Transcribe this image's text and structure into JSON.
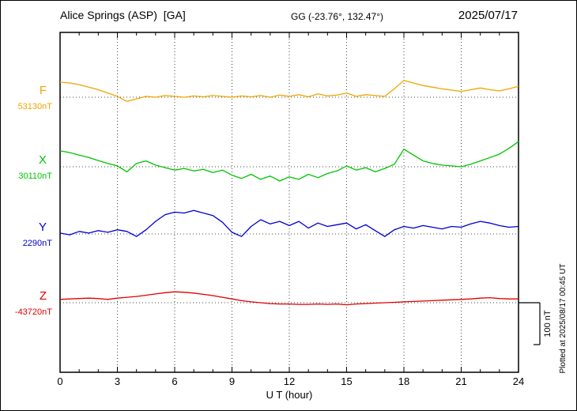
{
  "header": {
    "station": "Alice Springs (ASP)  [GA]",
    "coords": "GG (-23.76°, 132.47°)",
    "date": "2025/07/17"
  },
  "side_note": "Plotted at 2025/08/17 00:45 UT",
  "chart_data": {
    "type": "line",
    "title": "Alice Springs (ASP) [GA] magnetogram 2025/07/17",
    "xlabel": "U T (hour)",
    "xlim": [
      0,
      24
    ],
    "x_ticks": [
      0,
      3,
      6,
      9,
      12,
      15,
      18,
      21,
      24
    ],
    "x_start": 0,
    "x_step": 0.5,
    "grid": "dotted vertical lines at 3h intervals; dotted horizontal line at each channel baseline",
    "legend_position": "left-of-plot channel labels",
    "scale_bar": {
      "label": "100 nT",
      "nT": 100
    },
    "series": [
      {
        "name": "F",
        "baseline_label": "53130nT",
        "baseline_nT": 53130,
        "color": "#f0a500",
        "offsets_nT": [
          36,
          34,
          30,
          24,
          18,
          10,
          2,
          -10,
          -4,
          2,
          0,
          4,
          2,
          0,
          3,
          1,
          4,
          2,
          0,
          3,
          1,
          4,
          0,
          5,
          2,
          6,
          1,
          8,
          3,
          5,
          10,
          2,
          6,
          4,
          2,
          20,
          40,
          34,
          28,
          24,
          20,
          17,
          14,
          18,
          22,
          18,
          15,
          20,
          26
        ]
      },
      {
        "name": "X",
        "baseline_label": "30110nT",
        "baseline_nT": 30110,
        "color": "#00c400",
        "offsets_nT": [
          38,
          34,
          28,
          22,
          15,
          8,
          2,
          -12,
          8,
          14,
          4,
          -2,
          -8,
          -4,
          -10,
          -6,
          -14,
          -8,
          -20,
          -28,
          -18,
          -30,
          -22,
          -34,
          -24,
          -30,
          -18,
          -26,
          -16,
          -10,
          2,
          -8,
          -2,
          -12,
          -4,
          6,
          42,
          28,
          14,
          8,
          4,
          2,
          0,
          6,
          14,
          22,
          30,
          44,
          60
        ]
      },
      {
        "name": "Y",
        "baseline_label": "2290nT",
        "baseline_nT": 2290,
        "color": "#0000d0",
        "offsets_nT": [
          2,
          -2,
          6,
          2,
          8,
          4,
          10,
          6,
          -6,
          10,
          30,
          46,
          52,
          50,
          56,
          50,
          44,
          28,
          4,
          -6,
          18,
          34,
          24,
          30,
          20,
          30,
          14,
          26,
          18,
          22,
          26,
          12,
          22,
          8,
          -6,
          10,
          18,
          14,
          20,
          16,
          12,
          18,
          16,
          24,
          30,
          26,
          20,
          16,
          18
        ]
      },
      {
        "name": "Z",
        "baseline_label": "-43720nT",
        "baseline_nT": -43720,
        "color": "#e00000",
        "offsets_nT": [
          8,
          9,
          10,
          11,
          10,
          8,
          11,
          13,
          15,
          18,
          21,
          24,
          26,
          25,
          23,
          20,
          17,
          13,
          9,
          5,
          2,
          0,
          -2,
          -3,
          -3,
          -4,
          -4,
          -3,
          -4,
          -3,
          -5,
          -3,
          -2,
          -1,
          0,
          1,
          2,
          3,
          4,
          5,
          6,
          7,
          8,
          9,
          11,
          12,
          10,
          9,
          9
        ]
      }
    ]
  }
}
